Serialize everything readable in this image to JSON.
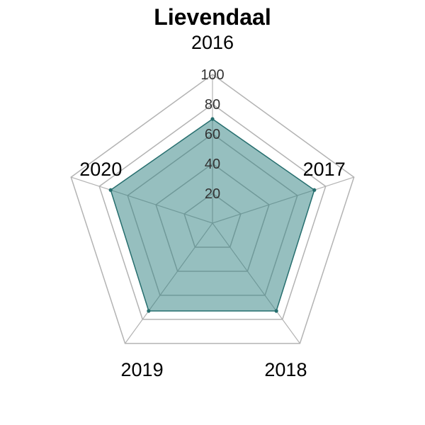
{
  "chart_data": {
    "type": "radar",
    "title": "Lievendaal",
    "axes": [
      "2016",
      "2017",
      "2018",
      "2019",
      "2020"
    ],
    "series": [
      {
        "values": [
          70,
          72,
          73,
          73,
          72
        ]
      }
    ],
    "rlim": [
      0,
      100
    ],
    "r_ticks": [
      20,
      40,
      60,
      80,
      100
    ],
    "colors": {
      "fill": "#2e7f7f",
      "stroke": "#266e6e",
      "grid": "#b3b3b3"
    }
  }
}
